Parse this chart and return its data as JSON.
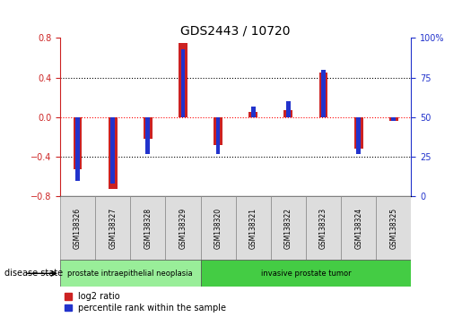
{
  "title": "GDS2443 / 10720",
  "samples": [
    "GSM138326",
    "GSM138327",
    "GSM138328",
    "GSM138329",
    "GSM138320",
    "GSM138321",
    "GSM138322",
    "GSM138323",
    "GSM138324",
    "GSM138325"
  ],
  "log2_ratio": [
    -0.52,
    -0.72,
    -0.22,
    0.75,
    -0.28,
    0.05,
    0.07,
    0.45,
    -0.32,
    -0.04
  ],
  "percentile_rank": [
    10,
    8,
    27,
    93,
    27,
    57,
    60,
    80,
    27,
    48
  ],
  "ylim": [
    -0.8,
    0.8
  ],
  "y2lim": [
    0,
    100
  ],
  "yticks": [
    -0.8,
    -0.4,
    0,
    0.4,
    0.8
  ],
  "y2ticks": [
    0,
    25,
    50,
    75,
    100
  ],
  "bar_color_red": "#cc2222",
  "bar_color_blue": "#2233cc",
  "disease_groups": [
    {
      "label": "prostate intraepithelial neoplasia",
      "start": 0,
      "end": 4,
      "color": "#99ee99"
    },
    {
      "label": "invasive prostate tumor",
      "start": 4,
      "end": 10,
      "color": "#44cc44"
    }
  ],
  "legend_items": [
    {
      "label": "log2 ratio",
      "color": "#cc2222"
    },
    {
      "label": "percentile rank within the sample",
      "color": "#2233cc"
    }
  ],
  "disease_state_label": "disease state",
  "background_color": "#ffffff",
  "tick_label_fontsize": 7,
  "title_fontsize": 10,
  "red_bar_width": 0.25,
  "blue_bar_width": 0.12
}
